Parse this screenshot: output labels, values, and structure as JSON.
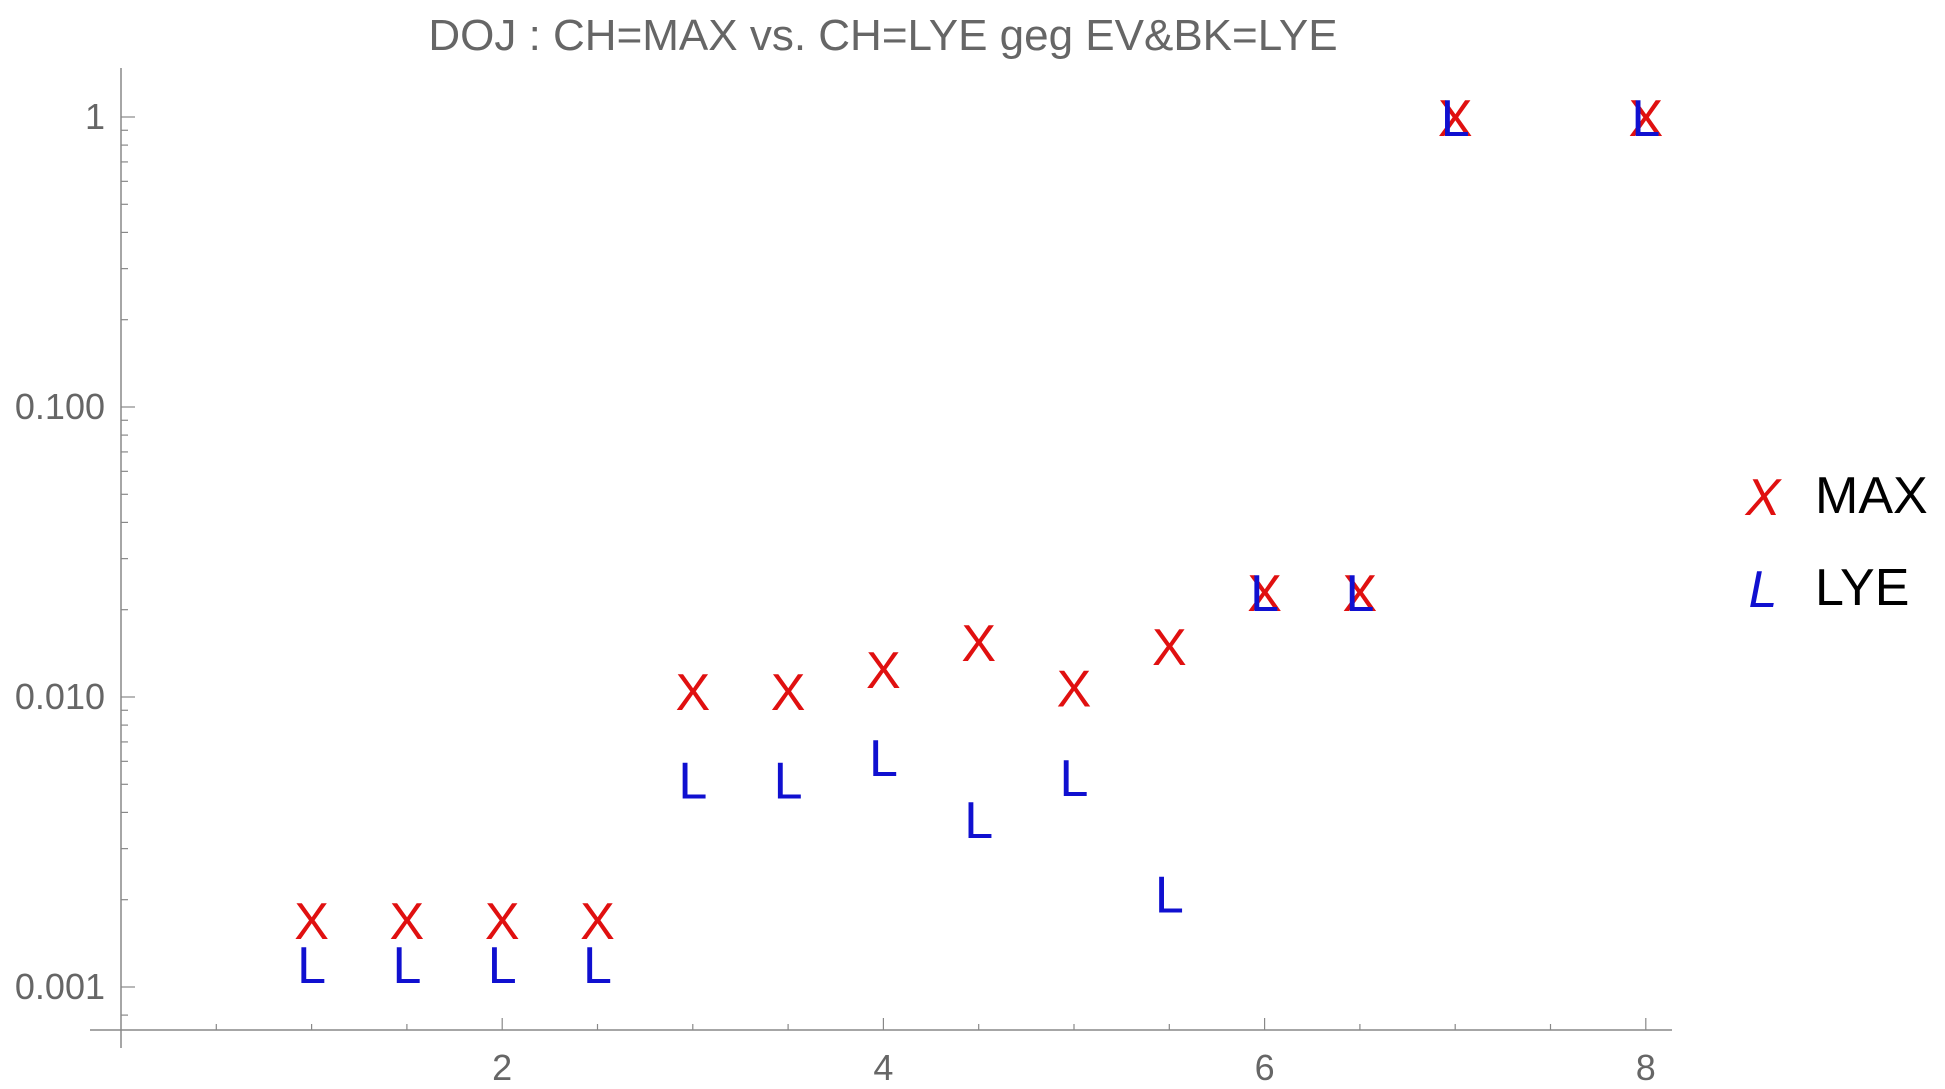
{
  "chart_data": {
    "type": "scatter",
    "title": "DOJ : CH=MAX vs. CH=LYE geg EV&BK=LYE",
    "xlabel": "",
    "ylabel": "",
    "xlim": [
      0,
      8.3
    ],
    "ylim": [
      0.00075,
      1.25
    ],
    "yscale": "log",
    "grid": false,
    "legend_position": "right",
    "x_ticks": [
      2,
      4,
      6,
      8
    ],
    "x_tick_labels": [
      "2",
      "4",
      "6",
      "8"
    ],
    "y_ticks": [
      0.001,
      0.01,
      0.1,
      1
    ],
    "y_tick_labels": [
      "0.001",
      "0.010",
      "0.100",
      "1"
    ],
    "series": [
      {
        "name": "MAX",
        "marker": "X",
        "color": "#e01010",
        "x": [
          1,
          1.5,
          2,
          2.5,
          3,
          3.5,
          4,
          4.5,
          5,
          5.5,
          6,
          6.5,
          7,
          8
        ],
        "y": [
          0.0017,
          0.0017,
          0.0017,
          0.0017,
          0.0105,
          0.0105,
          0.0125,
          0.0155,
          0.0108,
          0.015,
          0.023,
          0.023,
          1.0,
          1.0
        ]
      },
      {
        "name": "LYE",
        "marker": "L",
        "color": "#1010d0",
        "x": [
          1,
          1.5,
          2,
          2.5,
          3,
          3.5,
          4,
          4.5,
          5,
          5.5,
          6,
          6.5,
          7,
          8
        ],
        "y": [
          0.0012,
          0.0012,
          0.0012,
          0.0012,
          0.0052,
          0.0052,
          0.0062,
          0.0038,
          0.0053,
          0.0021,
          0.023,
          0.023,
          1.0,
          1.0
        ]
      }
    ]
  }
}
